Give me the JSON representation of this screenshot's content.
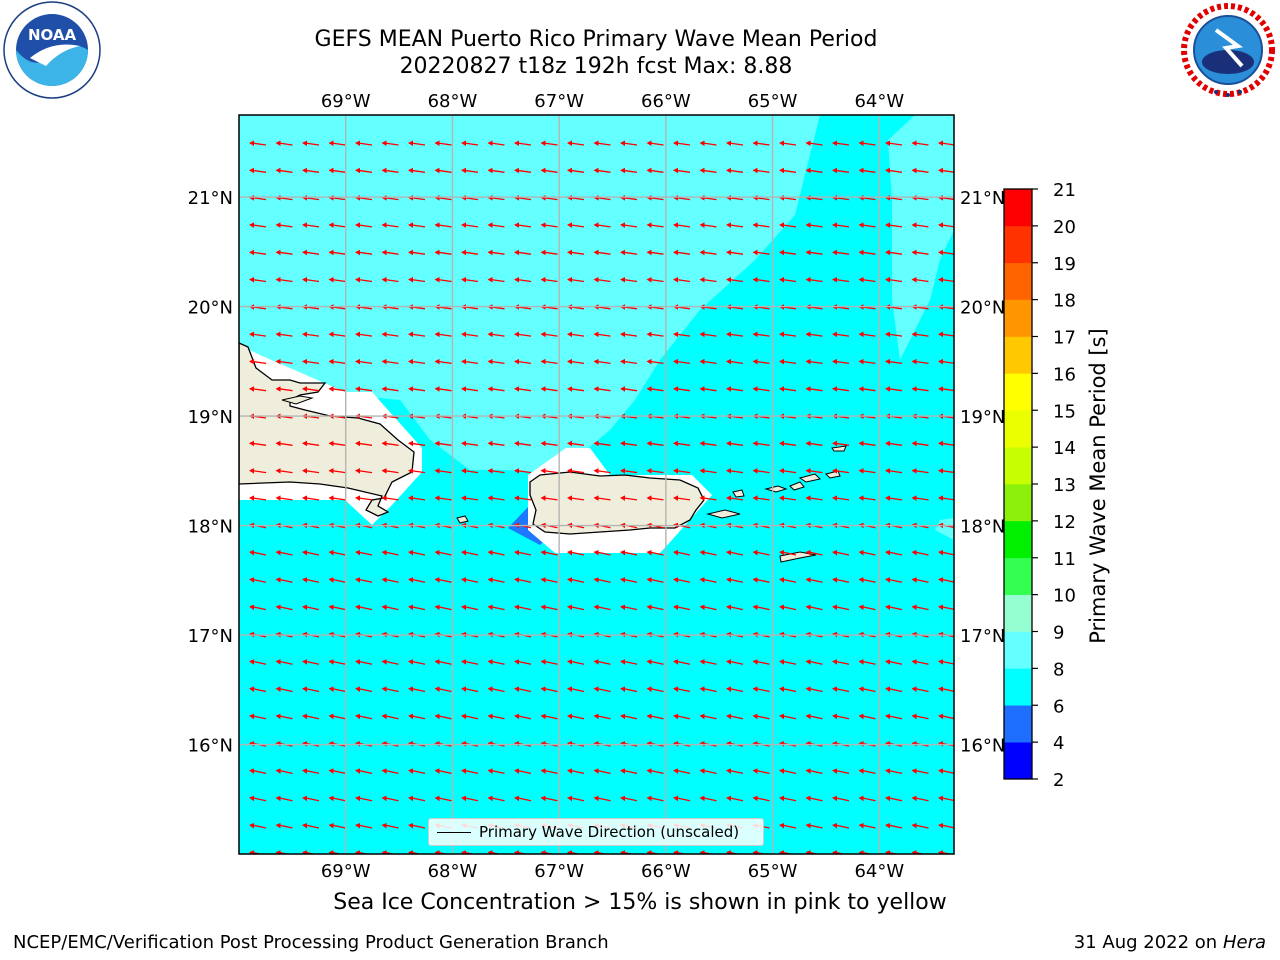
{
  "title_line1": "GEFS MEAN Puerto Rico Primary Wave Mean Period",
  "title_line2": "20220827 t18z 192h fcst   Max: 8.88",
  "caption": "Sea Ice Concentration > 15% is shown in pink to yellow",
  "footer_left": "NCEP/EMC/Verification Post Processing Product Generation Branch",
  "footer_date": "31 Aug 2022 on",
  "footer_machine": "Hera",
  "logos": {
    "left": "noaa-logo",
    "left_text": "NOAA",
    "right": "nws-logo",
    "right_text": "NATIONAL WEATHER SERVICE"
  },
  "legend_label": "Primary Wave Direction (unscaled)",
  "colorbar": {
    "label": "Primary Wave Mean Period [s]",
    "ticks": [
      "2",
      "4",
      "6",
      "8",
      "9",
      "10",
      "11",
      "12",
      "13",
      "14",
      "15",
      "16",
      "17",
      "18",
      "19",
      "20",
      "21"
    ],
    "colors": [
      "#0000ff",
      "#1e6eff",
      "#00ffff",
      "#64ffff",
      "#96ffd2",
      "#32ff50",
      "#00f000",
      "#8cf00a",
      "#c8ff00",
      "#ebff00",
      "#ffff00",
      "#ffc800",
      "#ff9600",
      "#ff6400",
      "#ff3200",
      "#ff0000"
    ]
  },
  "map": {
    "lon_labels": [
      "69°W",
      "68°W",
      "67°W",
      "66°W",
      "65°W",
      "64°W"
    ],
    "lat_labels": [
      "21°N",
      "20°N",
      "19°N",
      "18°N",
      "17°N",
      "16°N"
    ],
    "lon_range": [
      -70,
      -63.3
    ],
    "lat_range": [
      15.0,
      21.75
    ],
    "ocean_color": "#00ffff",
    "light_region_color": "#64ffff",
    "land_color": "#efeedc",
    "arrow_color": "#ff0000",
    "arrow_direction": "toward west"
  }
}
